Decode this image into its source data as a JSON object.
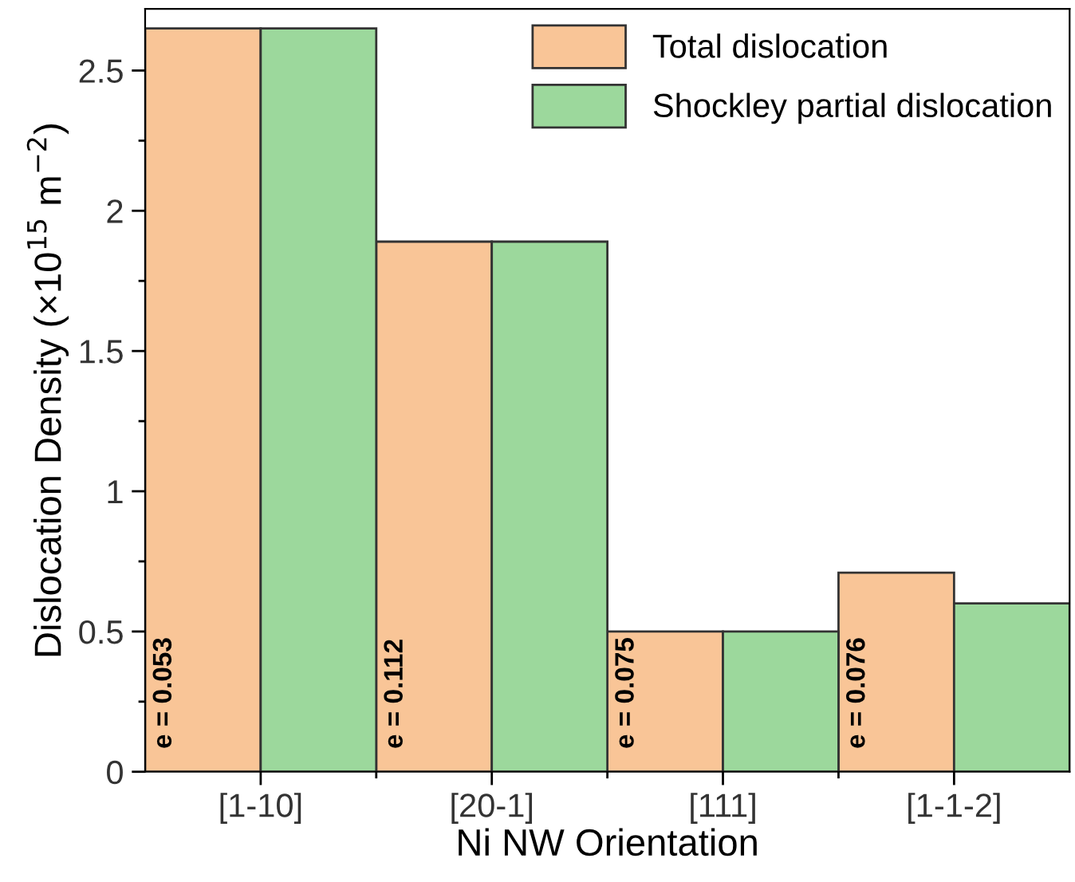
{
  "chart_data": {
    "type": "bar",
    "xlabel": "Ni NW Orientation",
    "ylabel": "Dislocation Density (×10$^{15}$ m$^{−2}$)",
    "categories": [
      "[1-10]",
      "[20-1]",
      "[111]",
      "[1-1-2]"
    ],
    "series": [
      {
        "name": "Total dislocation",
        "color": "#f9c597",
        "values": [
          2.65,
          1.89,
          0.5,
          0.71
        ]
      },
      {
        "name": "Shockley partial dislocation",
        "color": "#9cd89c",
        "values": [
          2.65,
          1.89,
          0.5,
          0.6
        ]
      }
    ],
    "ylim": [
      0,
      2.72
    ],
    "yticks": [
      0,
      0.5,
      1,
      1.5,
      2,
      2.5
    ],
    "grid": false,
    "legend": "top right",
    "annotations": [
      "e = 0.053",
      "e = 0.112",
      "e = 0.075",
      "e = 0.076"
    ]
  }
}
